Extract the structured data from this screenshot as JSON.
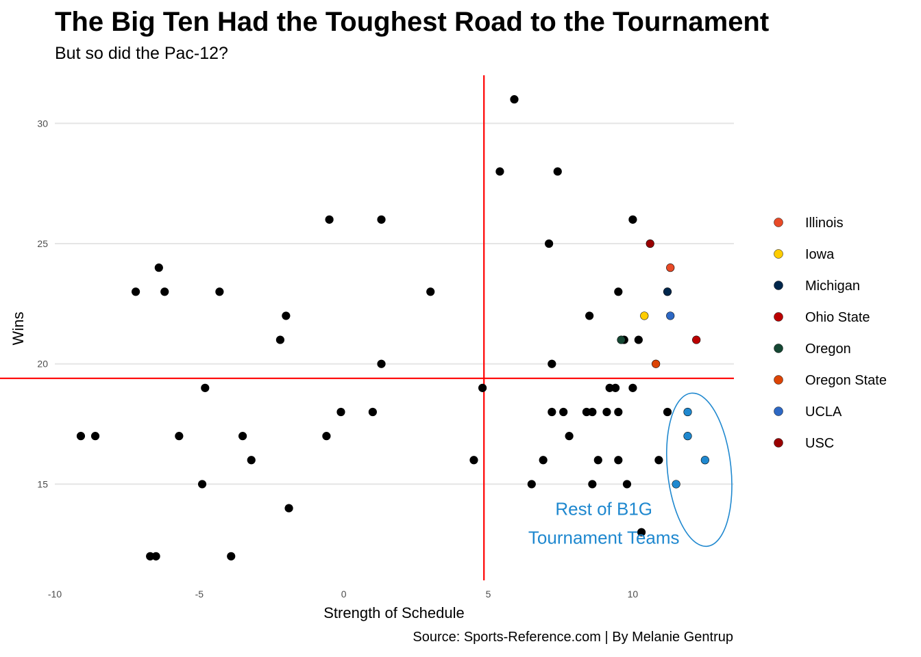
{
  "chart_data": {
    "type": "scatter",
    "title": "The Big Ten Had the Toughest Road to the Tournament",
    "subtitle": "But so did the Pac-12?",
    "xlabel": "Strength of Schedule",
    "ylabel": "Wins",
    "caption": "Source: Sports-Reference.com | By Melanie Gentrup",
    "xlim": [
      -10,
      13.5
    ],
    "ylim": [
      11,
      32
    ],
    "x_ticks": [
      -10,
      -5,
      0,
      5,
      10
    ],
    "y_ticks": [
      15,
      20,
      25,
      30
    ],
    "grid": "horizontal major",
    "legend_position": "right",
    "reference_lines": {
      "x": 4.85,
      "y": 19.4,
      "color": "#ff0000"
    },
    "annotation": {
      "lines": [
        "Rest of B1G",
        "Tournament Teams"
      ],
      "color": "#1f88cf",
      "x": 9.0,
      "y": 13.2,
      "ellipse": {
        "cx": 12.3,
        "cy": 15.6,
        "rx": 1.1,
        "ry": 3.2,
        "tilt_deg": -6
      }
    },
    "highlighted_series": [
      {
        "name": "Illinois",
        "color": "#e84a27",
        "x": [
          11.3
        ],
        "y": [
          24
        ]
      },
      {
        "name": "Iowa",
        "color": "#ffcd00",
        "x": [
          10.4
        ],
        "y": [
          22
        ]
      },
      {
        "name": "Michigan",
        "color": "#00274c",
        "x": [
          11.2
        ],
        "y": [
          23
        ]
      },
      {
        "name": "Ohio State",
        "color": "#bb0000",
        "x": [
          12.2
        ],
        "y": [
          21
        ]
      },
      {
        "name": "Oregon",
        "color": "#154733",
        "x": [
          9.6
        ],
        "y": [
          21
        ]
      },
      {
        "name": "Oregon State",
        "color": "#dc4405",
        "x": [
          10.8
        ],
        "y": [
          20
        ]
      },
      {
        "name": "UCLA",
        "color": "#2d68c4",
        "x": [
          11.3
        ],
        "y": [
          22
        ]
      },
      {
        "name": "USC",
        "color": "#990000",
        "x": [
          10.6
        ],
        "y": [
          25
        ]
      }
    ],
    "b1g_tournament_points": {
      "color": "#1f88cf",
      "x": [
        11.9,
        11.9,
        12.5,
        11.5
      ],
      "y": [
        18,
        17,
        16,
        15
      ]
    },
    "other_points": {
      "color": "#000000",
      "x": [
        5.9,
        5.4,
        7.4,
        -0.5,
        1.3,
        10.0,
        7.1,
        -6.4,
        -7.2,
        -6.2,
        -4.3,
        3.0,
        9.5,
        -2.0,
        8.5,
        -2.2,
        9.7,
        10.2,
        1.3,
        7.2,
        4.8,
        -4.8,
        9.2,
        9.4,
        10.0,
        -0.1,
        1.0,
        7.2,
        7.6,
        8.4,
        8.6,
        9.1,
        9.5,
        11.2,
        -9.1,
        -8.6,
        -5.7,
        -3.5,
        -0.6,
        7.8,
        -3.2,
        4.5,
        6.9,
        8.8,
        9.5,
        10.9,
        -4.9,
        6.5,
        8.6,
        9.8,
        -1.9,
        10.3,
        -6.7,
        -6.5,
        -3.9
      ],
      "y": [
        31,
        28,
        28,
        26,
        26,
        26,
        25,
        24,
        23,
        23,
        23,
        23,
        23,
        22,
        22,
        21,
        21,
        21,
        20,
        20,
        19,
        19,
        19,
        19,
        19,
        18,
        18,
        18,
        18,
        18,
        18,
        18,
        18,
        18,
        17,
        17,
        17,
        17,
        17,
        17,
        16,
        16,
        16,
        16,
        16,
        16,
        15,
        15,
        15,
        15,
        14,
        13,
        12,
        12,
        12
      ]
    }
  }
}
